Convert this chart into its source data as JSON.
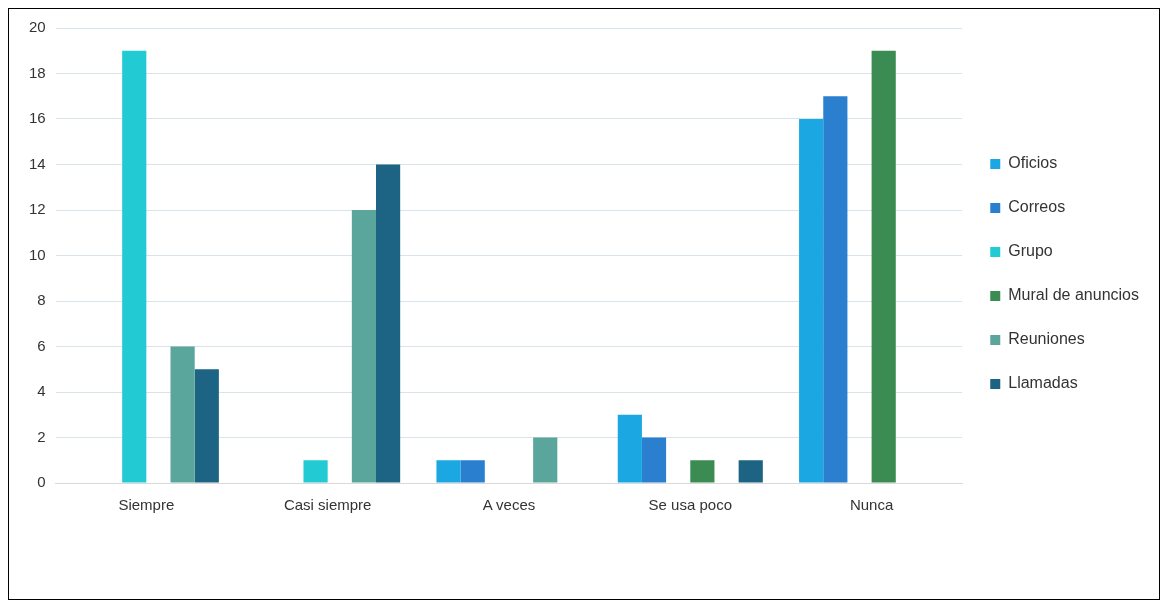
{
  "chart_data": {
    "type": "bar",
    "categories": [
      "Siempre",
      "Casi siempre",
      "A veces",
      "Se usa poco",
      "Nunca"
    ],
    "series": [
      {
        "name": "Oficios",
        "color": "#1ba8e2",
        "values": [
          0,
          0,
          1,
          3,
          16
        ]
      },
      {
        "name": "Correos",
        "color": "#2a7fcf",
        "values": [
          0,
          0,
          1,
          2,
          17
        ]
      },
      {
        "name": "Grupo",
        "color": "#22cbd3",
        "values": [
          19,
          1,
          0,
          0,
          0
        ]
      },
      {
        "name": "Mural de anuncios",
        "color": "#3a8c52",
        "values": [
          0,
          0,
          0,
          1,
          19
        ]
      },
      {
        "name": "Reuniones",
        "color": "#5aa59c",
        "values": [
          6,
          12,
          2,
          0,
          0
        ]
      },
      {
        "name": "Llamadas",
        "color": "#1c6384",
        "values": [
          5,
          14,
          0,
          1,
          0
        ]
      }
    ],
    "ylim": [
      0,
      20
    ],
    "yticks": [
      0,
      2,
      4,
      6,
      8,
      10,
      12,
      14,
      16,
      18,
      20
    ],
    "grid": "y",
    "legend": "right"
  }
}
